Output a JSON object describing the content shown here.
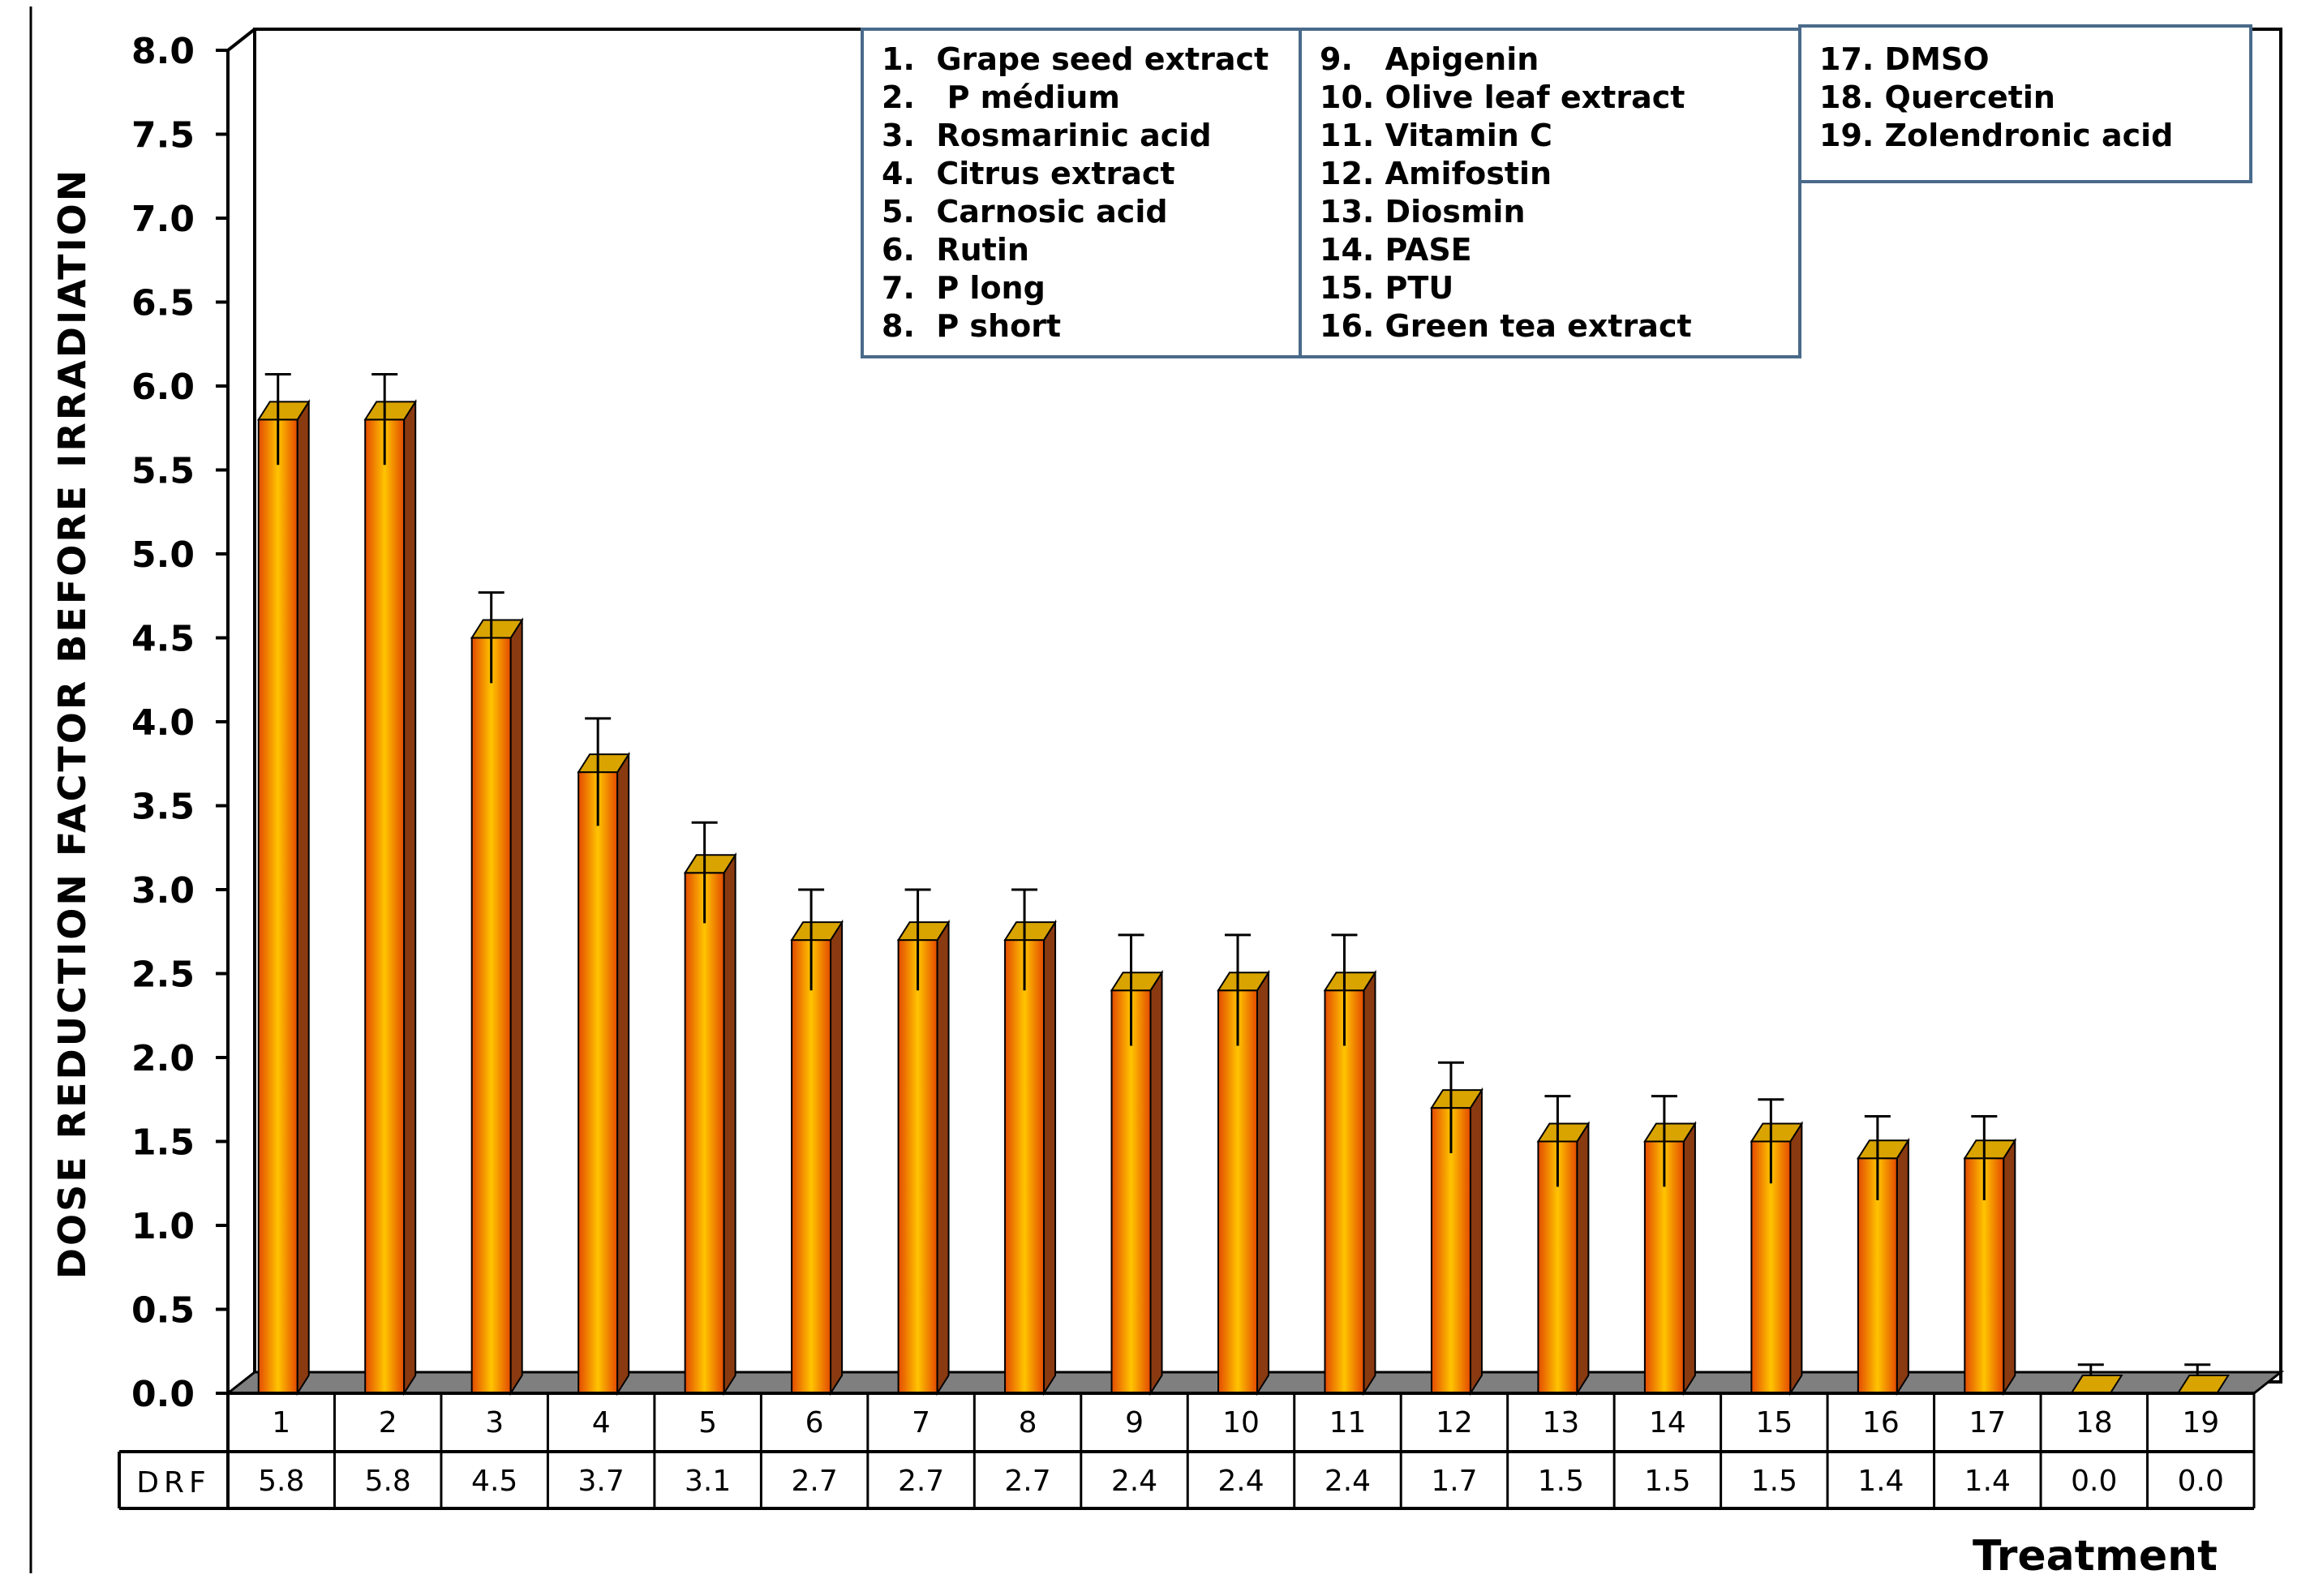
{
  "chart_data": {
    "type": "bar",
    "title": "",
    "ylabel": "DOSE REDUCTION FACTOR BEFORE IRRADIATION",
    "xlabel": "Treatment",
    "ylim": [
      0,
      8
    ],
    "yticks": [
      "0.0",
      "0.5",
      "1.0",
      "1.5",
      "2.0",
      "2.5",
      "3.0",
      "3.5",
      "4.0",
      "4.5",
      "5.0",
      "5.5",
      "6.0",
      "6.5",
      "7.0",
      "7.5",
      "8.0"
    ],
    "grid": false,
    "categories": [
      "1",
      "2",
      "3",
      "4",
      "5",
      "6",
      "7",
      "8",
      "9",
      "10",
      "11",
      "12",
      "13",
      "14",
      "15",
      "16",
      "17",
      "18",
      "19"
    ],
    "values": [
      5.8,
      5.8,
      4.5,
      3.7,
      3.1,
      2.7,
      2.7,
      2.7,
      2.4,
      2.4,
      2.4,
      1.7,
      1.5,
      1.5,
      1.5,
      1.4,
      1.4,
      0.0,
      0.0
    ],
    "error_bars": [
      0.27,
      0.27,
      0.27,
      0.32,
      0.3,
      0.3,
      0.3,
      0.3,
      0.33,
      0.33,
      0.33,
      0.27,
      0.27,
      0.27,
      0.25,
      0.25,
      0.25,
      0.17,
      0.17
    ],
    "table": {
      "row_label": "DRF",
      "cells": [
        "5.8",
        "5.8",
        "4.5",
        "3.7",
        "3.1",
        "2.7",
        "2.7",
        "2.7",
        "2.4",
        "2.4",
        "2.4",
        "1.7",
        "1.5",
        "1.5",
        "1.5",
        "1.4",
        "1.4",
        "0.0",
        "0.0"
      ]
    },
    "legend_columns": [
      [
        "1.  Grape seed extract",
        "2.   P médium",
        "3.  Rosmarinic acid",
        "4.  Citrus extract",
        "5.  Carnosic acid",
        "6.  Rutin",
        "7.  P long",
        "8.  P short"
      ],
      [
        "9.   Apigenin",
        "10. Olive leaf extract",
        "11. Vitamin C",
        "12. Amifostin",
        "13. Diosmin",
        "14. PASE",
        "15. PTU",
        "16. Green tea extract"
      ],
      [
        "17. DMSO",
        "18. Quercetin",
        "19. Zolendronic acid"
      ]
    ],
    "legend_placement": "top",
    "colors": {
      "bar_front": "#ff8a00",
      "bar_side": "#8a3a10",
      "bar_top": "#d9a400",
      "floor": "#7f7f7f",
      "legend_border": "#4a6a8a"
    }
  }
}
